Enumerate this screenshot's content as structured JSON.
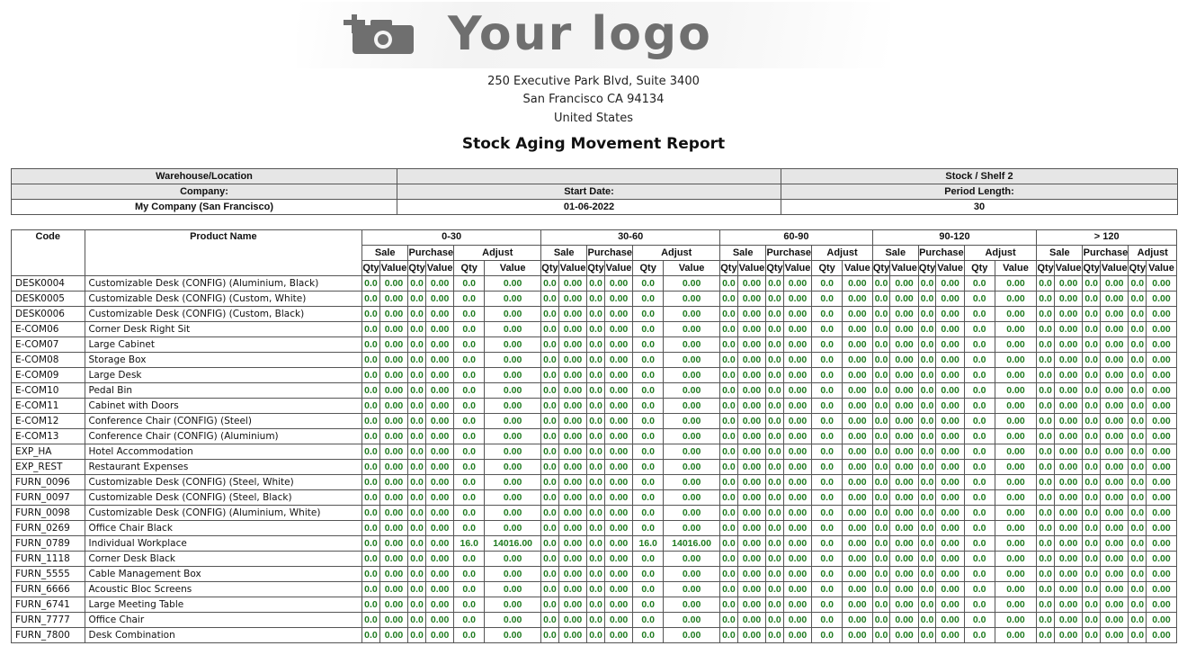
{
  "logo": {
    "text": "Your logo",
    "icon": "camera-plus-icon"
  },
  "address": {
    "line1": "250 Executive Park Blvd, Suite 3400",
    "line2": "San Francisco CA 94134",
    "line3": "United States"
  },
  "title": "Stock Aging Movement Report",
  "info": {
    "warehouse_label": "Warehouse/Location",
    "warehouse_value": "Stock / Shelf 2",
    "company_label": "Company:",
    "start_date_label": "Start Date:",
    "period_length_label": "Period Length:",
    "company_value": "My Company (San Francisco)",
    "start_date_value": "01-06-2022",
    "period_length_value": "30"
  },
  "table": {
    "code_header": "Code",
    "product_header": "Product Name",
    "periods": [
      "0-30",
      "30-60",
      "60-90",
      "90-120",
      "> 120"
    ],
    "groups": [
      "Sale",
      "Purchase",
      "Adjust"
    ],
    "sub": [
      "Qty",
      "Value"
    ],
    "rows": [
      {
        "code": "DESK0004",
        "name": "Customizable Desk (CONFIG) (Aluminium, Black)",
        "adj_qty": "0.0",
        "adj_value": "0.00"
      },
      {
        "code": "DESK0005",
        "name": "Customizable Desk (CONFIG) (Custom, White)",
        "adj_qty": "0.0",
        "adj_value": "0.00"
      },
      {
        "code": "DESK0006",
        "name": "Customizable Desk (CONFIG) (Custom, Black)",
        "adj_qty": "0.0",
        "adj_value": "0.00"
      },
      {
        "code": "E-COM06",
        "name": "Corner Desk Right Sit",
        "adj_qty": "0.0",
        "adj_value": "0.00"
      },
      {
        "code": "E-COM07",
        "name": "Large Cabinet",
        "adj_qty": "0.0",
        "adj_value": "0.00"
      },
      {
        "code": "E-COM08",
        "name": "Storage Box",
        "adj_qty": "0.0",
        "adj_value": "0.00"
      },
      {
        "code": "E-COM09",
        "name": "Large Desk",
        "adj_qty": "0.0",
        "adj_value": "0.00"
      },
      {
        "code": "E-COM10",
        "name": "Pedal Bin",
        "adj_qty": "0.0",
        "adj_value": "0.00"
      },
      {
        "code": "E-COM11",
        "name": "Cabinet with Doors",
        "adj_qty": "0.0",
        "adj_value": "0.00"
      },
      {
        "code": "E-COM12",
        "name": "Conference Chair (CONFIG) (Steel)",
        "adj_qty": "0.0",
        "adj_value": "0.00"
      },
      {
        "code": "E-COM13",
        "name": "Conference Chair (CONFIG) (Aluminium)",
        "adj_qty": "0.0",
        "adj_value": "0.00"
      },
      {
        "code": "EXP_HA",
        "name": "Hotel Accommodation",
        "adj_qty": "0.0",
        "adj_value": "0.00"
      },
      {
        "code": "EXP_REST",
        "name": "Restaurant Expenses",
        "adj_qty": "0.0",
        "adj_value": "0.00"
      },
      {
        "code": "FURN_0096",
        "name": "Customizable Desk (CONFIG) (Steel, White)",
        "adj_qty": "0.0",
        "adj_value": "0.00"
      },
      {
        "code": "FURN_0097",
        "name": "Customizable Desk (CONFIG) (Steel, Black)",
        "adj_qty": "0.0",
        "adj_value": "0.00"
      },
      {
        "code": "FURN_0098",
        "name": "Customizable Desk (CONFIG) (Aluminium, White)",
        "adj_qty": "0.0",
        "adj_value": "0.00"
      },
      {
        "code": "FURN_0269",
        "name": "Office Chair Black",
        "adj_qty": "0.0",
        "adj_value": "0.00"
      },
      {
        "code": "FURN_0789",
        "name": "Individual Workplace",
        "adj_qty": "16.0",
        "adj_value": "14016.00"
      },
      {
        "code": "FURN_1118",
        "name": "Corner Desk Black",
        "adj_qty": "0.0",
        "adj_value": "0.00"
      },
      {
        "code": "FURN_5555",
        "name": "Cable Management Box",
        "adj_qty": "0.0",
        "adj_value": "0.00"
      },
      {
        "code": "FURN_6666",
        "name": "Acoustic Bloc Screens",
        "adj_qty": "0.0",
        "adj_value": "0.00"
      },
      {
        "code": "FURN_6741",
        "name": "Large Meeting Table",
        "adj_qty": "0.0",
        "adj_value": "0.00"
      },
      {
        "code": "FURN_7777",
        "name": "Office Chair",
        "adj_qty": "0.0",
        "adj_value": "0.00"
      },
      {
        "code": "FURN_7800",
        "name": "Desk Combination",
        "adj_qty": "0.0",
        "adj_value": "0.00"
      }
    ],
    "zero_qty": "0.0",
    "zero_value": "0.00",
    "adjust_filled_periods": [
      0,
      1
    ]
  },
  "colors": {
    "value_green": "#1f7a1f",
    "header_gray": "#e6e6e6",
    "logo_gray": "#6f6f6f"
  }
}
